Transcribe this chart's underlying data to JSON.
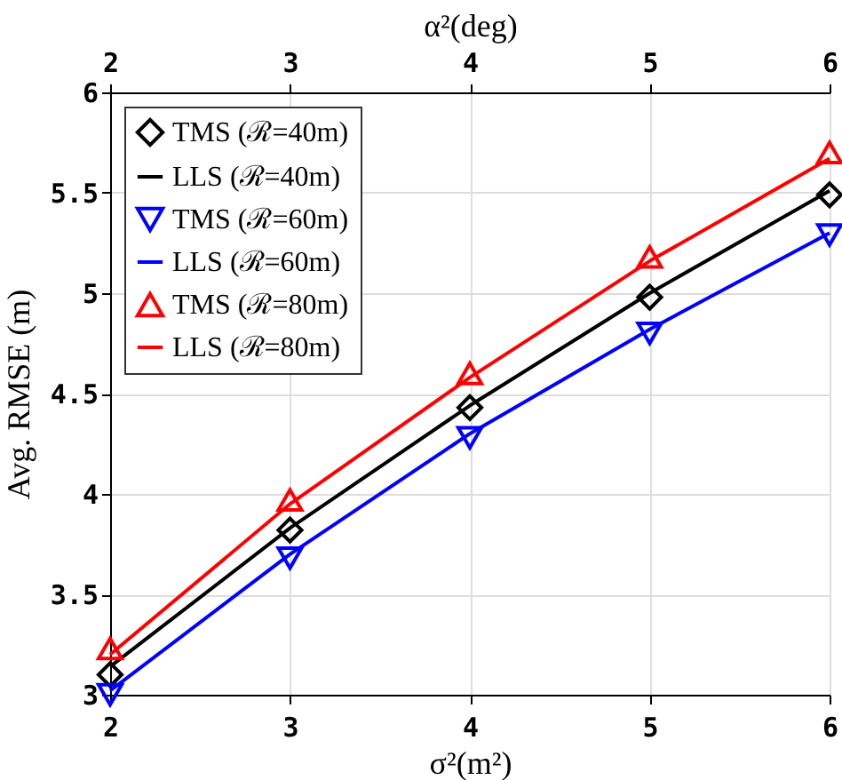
{
  "chart_data": {
    "type": "line",
    "xlabel": "σ²(m²)",
    "ylabel": "Avg. RMSE (m)",
    "x2label": "α²(deg)",
    "x": [
      2,
      3,
      4,
      5,
      6
    ],
    "xlim": [
      2,
      6
    ],
    "xticks": [
      2,
      3,
      4,
      5,
      6
    ],
    "x2lim": [
      2,
      6
    ],
    "x2ticks": [
      2,
      3,
      4,
      5,
      6
    ],
    "ylim": [
      3,
      6
    ],
    "yticks": [
      3,
      3.5,
      4,
      4.5,
      5,
      5.5,
      6
    ],
    "grid": true,
    "legend": "top left",
    "series": [
      {
        "name": "TMS (ℛ=40m)",
        "type": "scatter",
        "marker": "diamond",
        "color": "#000000",
        "values": [
          3.1,
          3.82,
          4.43,
          4.98,
          5.49
        ]
      },
      {
        "name": "LLS (ℛ=40m)",
        "line_style": "solid",
        "color": "#000000",
        "values": [
          3.14,
          3.83,
          4.44,
          5.0,
          5.51
        ]
      },
      {
        "name": "TMS (ℛ=60m)",
        "type": "scatter",
        "marker": "triangle-down",
        "color": "#0000ff",
        "values": [
          3.0,
          3.68,
          4.28,
          4.8,
          5.29
        ]
      },
      {
        "name": "LLS (ℛ=60m)",
        "line_style": "solid",
        "color": "#0000ff",
        "values": [
          3.02,
          3.7,
          4.3,
          4.82,
          5.3
        ]
      },
      {
        "name": "TMS (ℛ=80m)",
        "type": "scatter",
        "marker": "triangle-up",
        "color": "#ff0000",
        "values": [
          3.23,
          3.97,
          4.6,
          5.18,
          5.7
        ]
      },
      {
        "name": "LLS (ℛ=80m)",
        "line_style": "solid",
        "color": "#ff0000",
        "values": [
          3.2,
          3.95,
          4.58,
          5.16,
          5.67
        ]
      }
    ]
  }
}
